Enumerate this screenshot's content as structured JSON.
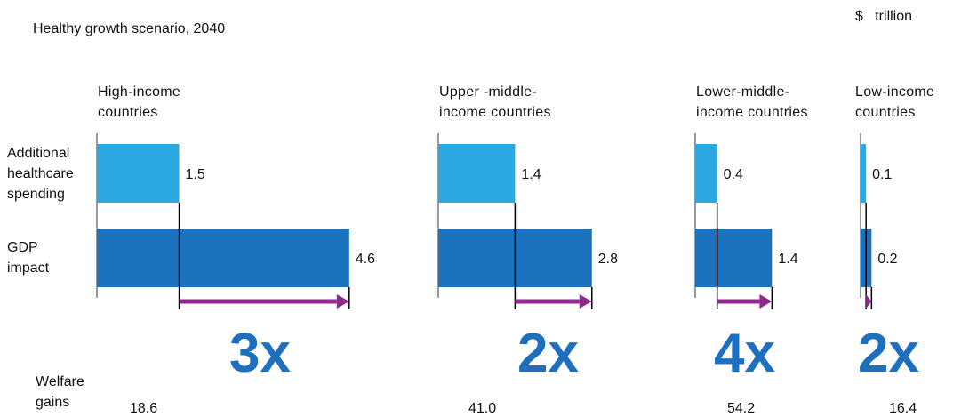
{
  "subtitle": "Healthy growth scenario, 2040",
  "unit": "$   trillion",
  "row_labels": {
    "healthcare": [
      "Additional",
      "healthcare",
      "spending"
    ],
    "gdp": [
      "GDP",
      "impact"
    ],
    "welfare": [
      "Welfare",
      "gains"
    ]
  },
  "groups": [
    {
      "title": [
        "High-income",
        "countries"
      ],
      "multiplier": "3x",
      "welfare": "18.6"
    },
    {
      "title": [
        "Upper -middle-",
        "income countries"
      ],
      "multiplier": "2x",
      "welfare": "41.0"
    },
    {
      "title": [
        "Lower-middle-",
        "income countries"
      ],
      "multiplier": "4x",
      "welfare": "54.2"
    },
    {
      "title": [
        "Low-income",
        "countries"
      ],
      "multiplier": "2x",
      "welfare": "16.4"
    }
  ],
  "colors": {
    "healthcare": "#2ba9e0",
    "gdp": "#1d72bd",
    "arrow": "#8e2a8e",
    "multiplier": "#1f6fbf",
    "axis": "#9a9a9a"
  },
  "chart_data": {
    "type": "bar",
    "title": "",
    "subtitle": "Healthy growth scenario, 2040",
    "unit": "$ trillion",
    "orientation": "horizontal",
    "categories": [
      "High-income countries",
      "Upper -middle- income countries",
      "Lower-middle- income countries",
      "Low-income countries"
    ],
    "series": [
      {
        "name": "Additional healthcare spending",
        "values": [
          1.5,
          1.4,
          0.4,
          0.1
        ]
      },
      {
        "name": "GDP impact",
        "values": [
          4.6,
          2.8,
          1.4,
          0.2
        ]
      }
    ],
    "labels": {
      "healthcare": [
        "1.5",
        "1.4",
        "0.4",
        "0.1"
      ],
      "gdp": [
        "4.6",
        "2.8",
        "1.4",
        "0.2"
      ]
    },
    "multipliers": [
      "3x",
      "2x",
      "4x",
      "2x"
    ],
    "welfare_gains": [
      18.6,
      41.0,
      54.2,
      16.4
    ],
    "grid": false,
    "legend": "none"
  }
}
